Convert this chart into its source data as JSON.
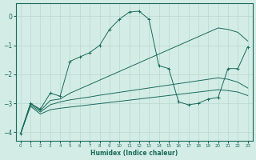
{
  "xlabel": "Humidex (Indice chaleur)",
  "bg_color": "#d4ece6",
  "line_color": "#1a6b5a",
  "grid_color": "#b8d8d0",
  "xlim": [
    -0.5,
    23.5
  ],
  "ylim": [
    -4.3,
    0.45
  ],
  "yticks": [
    0,
    -1,
    -2,
    -3,
    -4
  ],
  "xticks": [
    0,
    1,
    2,
    3,
    4,
    5,
    6,
    7,
    8,
    9,
    10,
    11,
    12,
    13,
    14,
    15,
    16,
    17,
    18,
    19,
    20,
    21,
    22,
    23
  ],
  "series": [
    {
      "x": [
        0,
        1,
        2,
        3,
        4,
        5,
        6,
        7,
        8,
        9,
        10,
        11,
        12,
        13,
        14,
        15,
        16,
        17,
        18,
        19,
        20,
        21,
        22,
        23
      ],
      "y": [
        -4.05,
        -3.0,
        -3.2,
        -2.65,
        -2.75,
        -1.55,
        -1.4,
        -1.25,
        -1.0,
        -0.45,
        -0.1,
        0.15,
        0.18,
        -0.1,
        -1.7,
        -1.8,
        -2.95,
        -3.05,
        -3.0,
        -2.85,
        -2.8,
        -1.8,
        -1.8,
        -1.05
      ],
      "marker": "+"
    },
    {
      "x": [
        0,
        1,
        2,
        3,
        4,
        5,
        6,
        7,
        8,
        9,
        10,
        11,
        12,
        13,
        14,
        15,
        16,
        17,
        18,
        19,
        20,
        21,
        22,
        23
      ],
      "y": [
        -4.05,
        -3.0,
        -3.25,
        -2.9,
        -2.85,
        -2.65,
        -2.5,
        -2.35,
        -2.2,
        -2.05,
        -1.9,
        -1.75,
        -1.6,
        -1.45,
        -1.3,
        -1.15,
        -1.0,
        -0.85,
        -0.7,
        -0.55,
        -0.4,
        -0.45,
        -0.55,
        -0.85
      ],
      "marker": null
    },
    {
      "x": [
        0,
        1,
        2,
        3,
        4,
        5,
        6,
        7,
        8,
        9,
        10,
        11,
        12,
        13,
        14,
        15,
        16,
        17,
        18,
        19,
        20,
        21,
        22,
        23
      ],
      "y": [
        -4.05,
        -3.05,
        -3.3,
        -3.05,
        -2.95,
        -2.88,
        -2.83,
        -2.78,
        -2.72,
        -2.67,
        -2.62,
        -2.57,
        -2.52,
        -2.47,
        -2.42,
        -2.37,
        -2.32,
        -2.27,
        -2.22,
        -2.17,
        -2.12,
        -2.17,
        -2.27,
        -2.47
      ],
      "marker": null
    },
    {
      "x": [
        0,
        1,
        2,
        3,
        4,
        5,
        6,
        7,
        8,
        9,
        10,
        11,
        12,
        13,
        14,
        15,
        16,
        17,
        18,
        19,
        20,
        21,
        22,
        23
      ],
      "y": [
        -4.05,
        -3.1,
        -3.37,
        -3.22,
        -3.17,
        -3.13,
        -3.09,
        -3.05,
        -3.01,
        -2.97,
        -2.93,
        -2.89,
        -2.85,
        -2.81,
        -2.77,
        -2.73,
        -2.69,
        -2.65,
        -2.61,
        -2.57,
        -2.53,
        -2.56,
        -2.61,
        -2.73
      ],
      "marker": null
    }
  ]
}
